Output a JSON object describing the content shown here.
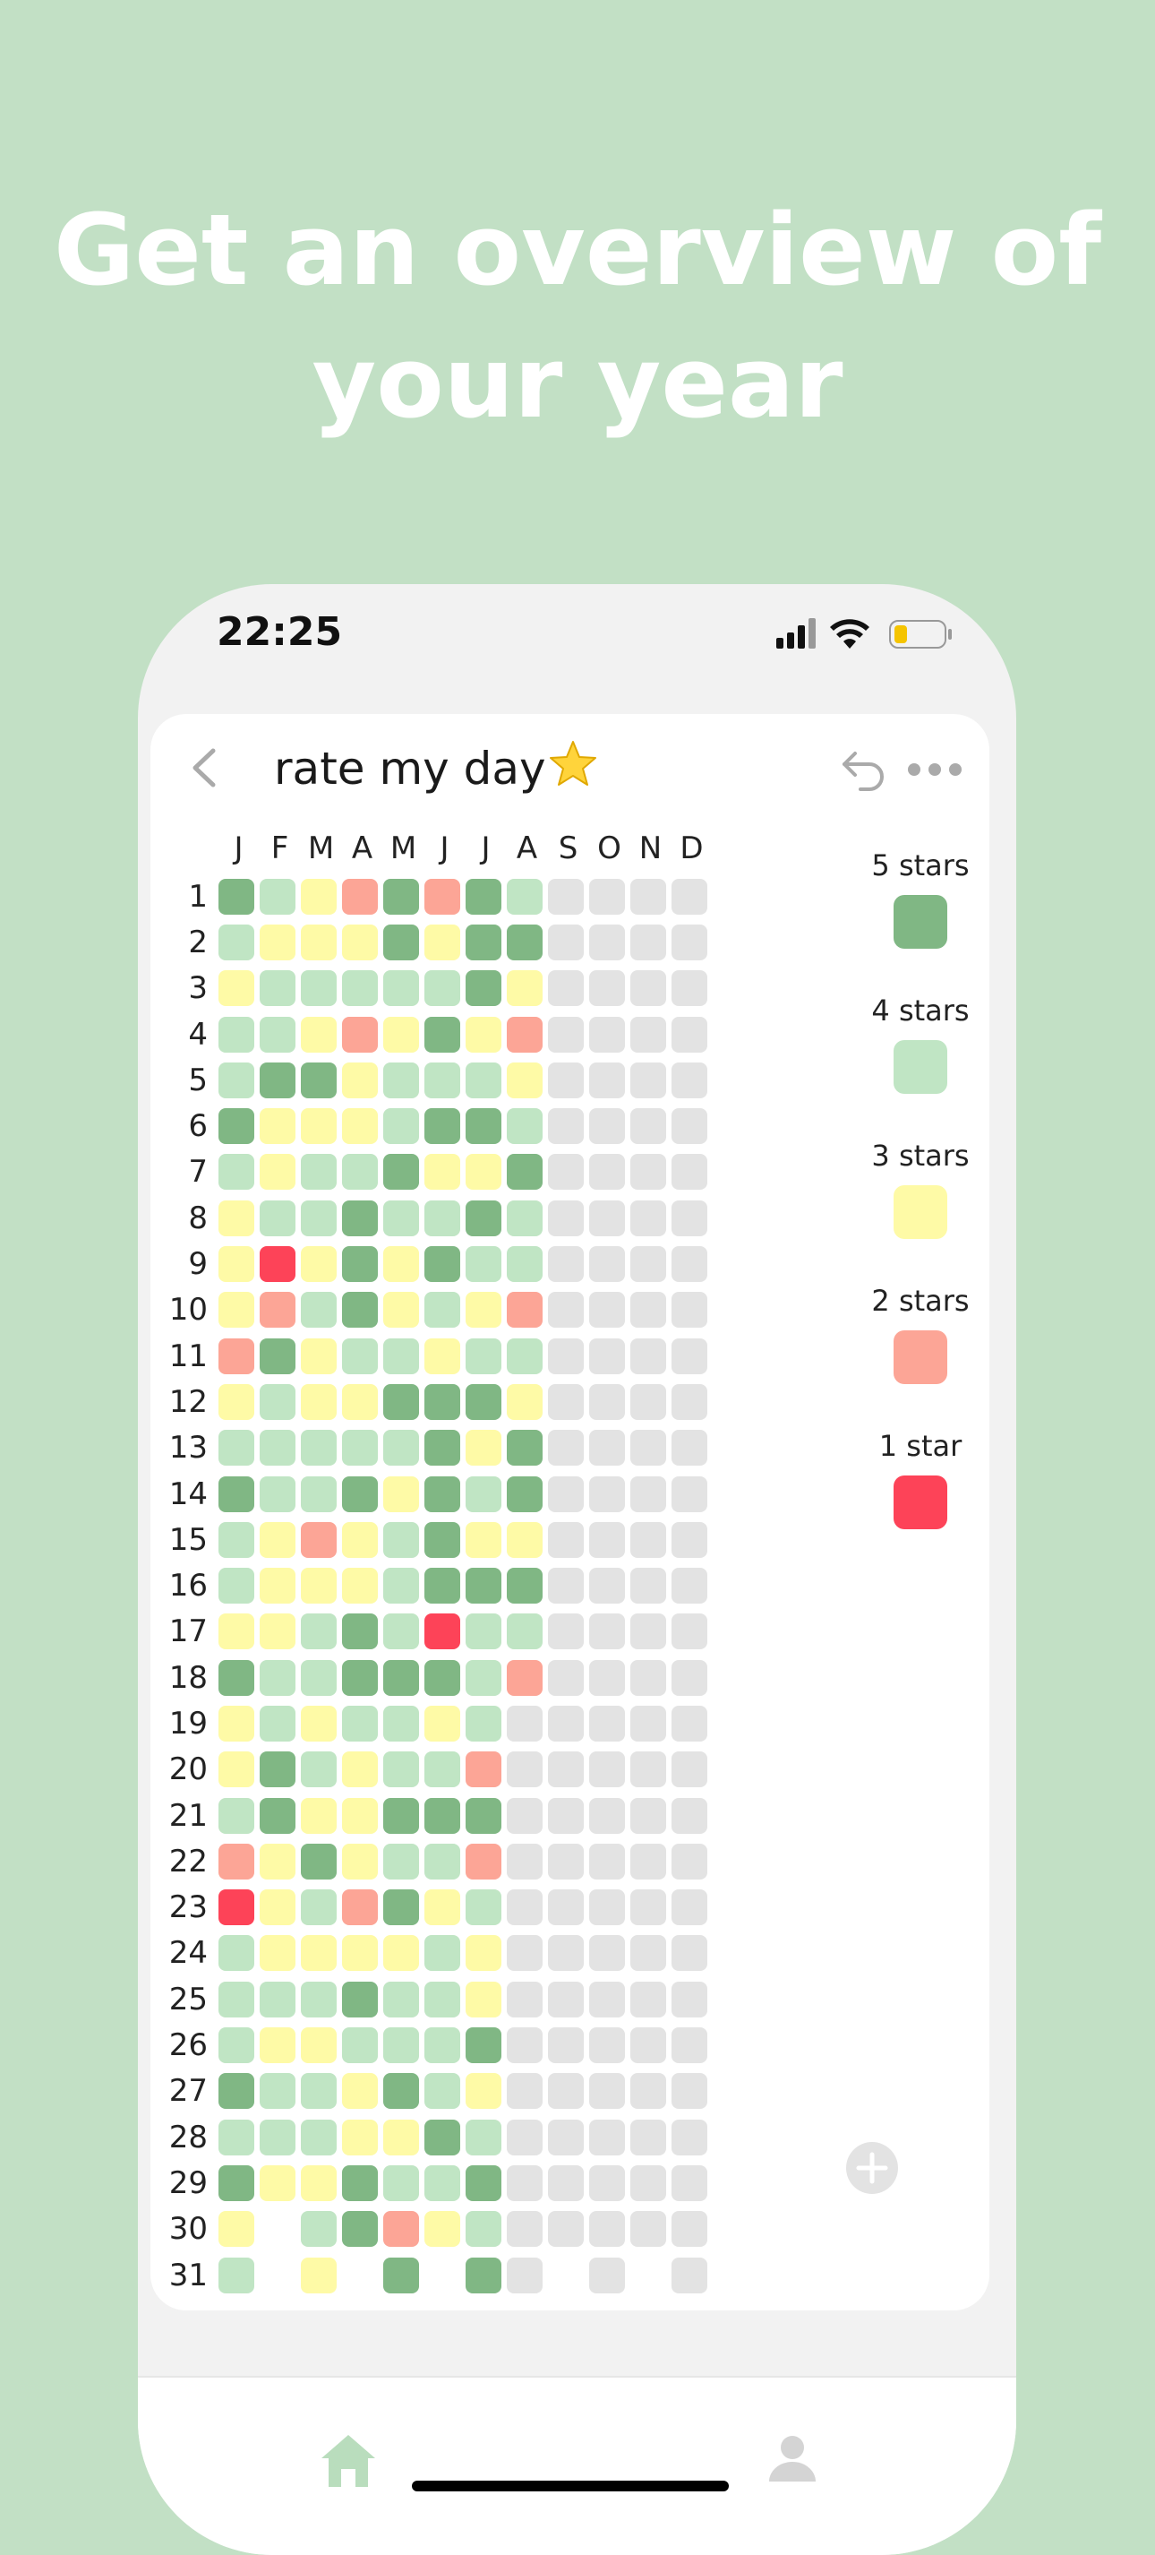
{
  "headline": {
    "line1": "Get an overview of",
    "line2": "your year"
  },
  "status_bar": {
    "time": "22:25"
  },
  "toolbar": {
    "title": "rate my day",
    "title_emoji": "star-emoji"
  },
  "months": [
    "J",
    "F",
    "M",
    "A",
    "M",
    "J",
    "J",
    "A",
    "S",
    "O",
    "N",
    "D"
  ],
  "days": [
    "1",
    "2",
    "3",
    "4",
    "5",
    "6",
    "7",
    "8",
    "9",
    "10",
    "11",
    "12",
    "13",
    "14",
    "15",
    "16",
    "17",
    "18",
    "19",
    "20",
    "21",
    "22",
    "23",
    "24",
    "25",
    "26",
    "27",
    "28",
    "29",
    "30",
    "31"
  ],
  "colors": {
    "5": "#80b784",
    "4": "#c0e5c4",
    "3": "#fefaa6",
    "2": "#fca596",
    "1": "#fd4358",
    "0": "#e3e3e3",
    "x": "transparent"
  },
  "grid": [
    [
      "5",
      "4",
      "3",
      "2",
      "5",
      "2",
      "5",
      "4",
      "0",
      "0",
      "0",
      "0"
    ],
    [
      "4",
      "3",
      "3",
      "3",
      "5",
      "3",
      "5",
      "5",
      "0",
      "0",
      "0",
      "0"
    ],
    [
      "3",
      "4",
      "4",
      "4",
      "4",
      "4",
      "5",
      "3",
      "0",
      "0",
      "0",
      "0"
    ],
    [
      "4",
      "4",
      "3",
      "2",
      "3",
      "5",
      "3",
      "2",
      "0",
      "0",
      "0",
      "0"
    ],
    [
      "4",
      "5",
      "5",
      "3",
      "4",
      "4",
      "4",
      "3",
      "0",
      "0",
      "0",
      "0"
    ],
    [
      "5",
      "3",
      "3",
      "3",
      "4",
      "5",
      "5",
      "4",
      "0",
      "0",
      "0",
      "0"
    ],
    [
      "4",
      "3",
      "4",
      "4",
      "5",
      "3",
      "3",
      "5",
      "0",
      "0",
      "0",
      "0"
    ],
    [
      "3",
      "4",
      "4",
      "5",
      "4",
      "4",
      "5",
      "4",
      "0",
      "0",
      "0",
      "0"
    ],
    [
      "3",
      "1",
      "3",
      "5",
      "3",
      "5",
      "4",
      "4",
      "0",
      "0",
      "0",
      "0"
    ],
    [
      "3",
      "2",
      "4",
      "5",
      "3",
      "4",
      "3",
      "2",
      "0",
      "0",
      "0",
      "0"
    ],
    [
      "2",
      "5",
      "3",
      "4",
      "4",
      "3",
      "4",
      "4",
      "0",
      "0",
      "0",
      "0"
    ],
    [
      "3",
      "4",
      "3",
      "3",
      "5",
      "5",
      "5",
      "3",
      "0",
      "0",
      "0",
      "0"
    ],
    [
      "4",
      "4",
      "4",
      "4",
      "4",
      "5",
      "3",
      "5",
      "0",
      "0",
      "0",
      "0"
    ],
    [
      "5",
      "4",
      "4",
      "5",
      "3",
      "5",
      "4",
      "5",
      "0",
      "0",
      "0",
      "0"
    ],
    [
      "4",
      "3",
      "2",
      "3",
      "4",
      "5",
      "3",
      "3",
      "0",
      "0",
      "0",
      "0"
    ],
    [
      "4",
      "3",
      "3",
      "3",
      "4",
      "5",
      "5",
      "5",
      "0",
      "0",
      "0",
      "0"
    ],
    [
      "3",
      "3",
      "4",
      "5",
      "4",
      "1",
      "4",
      "4",
      "0",
      "0",
      "0",
      "0"
    ],
    [
      "5",
      "4",
      "4",
      "5",
      "5",
      "5",
      "4",
      "2",
      "0",
      "0",
      "0",
      "0"
    ],
    [
      "3",
      "4",
      "3",
      "4",
      "4",
      "3",
      "4",
      "0",
      "0",
      "0",
      "0",
      "0"
    ],
    [
      "3",
      "5",
      "4",
      "3",
      "4",
      "4",
      "2",
      "0",
      "0",
      "0",
      "0",
      "0"
    ],
    [
      "4",
      "5",
      "3",
      "3",
      "5",
      "5",
      "5",
      "0",
      "0",
      "0",
      "0",
      "0"
    ],
    [
      "2",
      "3",
      "5",
      "3",
      "4",
      "4",
      "2",
      "0",
      "0",
      "0",
      "0",
      "0"
    ],
    [
      "1",
      "3",
      "4",
      "2",
      "5",
      "3",
      "4",
      "0",
      "0",
      "0",
      "0",
      "0"
    ],
    [
      "4",
      "3",
      "3",
      "3",
      "3",
      "4",
      "3",
      "0",
      "0",
      "0",
      "0",
      "0"
    ],
    [
      "4",
      "4",
      "4",
      "5",
      "4",
      "4",
      "3",
      "0",
      "0",
      "0",
      "0",
      "0"
    ],
    [
      "4",
      "3",
      "3",
      "4",
      "4",
      "4",
      "5",
      "0",
      "0",
      "0",
      "0",
      "0"
    ],
    [
      "5",
      "4",
      "4",
      "3",
      "5",
      "4",
      "3",
      "0",
      "0",
      "0",
      "0",
      "0"
    ],
    [
      "4",
      "4",
      "4",
      "3",
      "3",
      "5",
      "4",
      "0",
      "0",
      "0",
      "0",
      "0"
    ],
    [
      "5",
      "3",
      "3",
      "5",
      "4",
      "4",
      "5",
      "0",
      "0",
      "0",
      "0",
      "0"
    ],
    [
      "3",
      "x",
      "4",
      "5",
      "2",
      "3",
      "4",
      "0",
      "0",
      "0",
      "0",
      "0"
    ],
    [
      "4",
      "x",
      "3",
      "x",
      "5",
      "x",
      "5",
      "0",
      "x",
      "0",
      "x",
      "0"
    ]
  ],
  "legend": [
    {
      "label": "5 stars",
      "rating": "5"
    },
    {
      "label": "4 stars",
      "rating": "4"
    },
    {
      "label": "3 stars",
      "rating": "3"
    },
    {
      "label": "2 stars",
      "rating": "2"
    },
    {
      "label": "1 star",
      "rating": "1"
    }
  ],
  "tabbar": {
    "home_icon": "home-icon",
    "profile_icon": "person-icon"
  }
}
